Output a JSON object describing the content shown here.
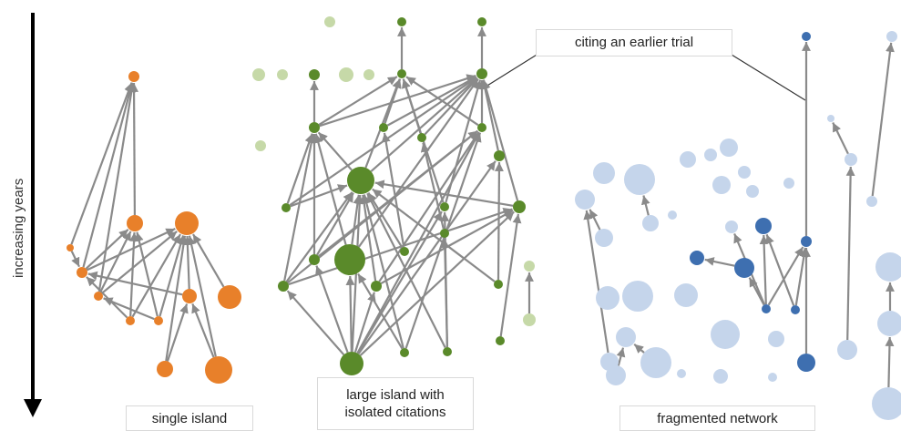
{
  "axis": {
    "label": "increasing years"
  },
  "labels": {
    "single_island": "single island",
    "large_island_line1": "large island with",
    "large_island_line2": "isolated citations",
    "fragmented": "fragmented network",
    "citing": "citing an earlier trial"
  },
  "colors": {
    "orange": "#e8802a",
    "green": "#5a8a2a",
    "light_green": "#c6d9a8",
    "light_blue": "#c5d5eb",
    "dark_blue": "#3e6fb0",
    "edge": "#8a8a8a"
  }
}
